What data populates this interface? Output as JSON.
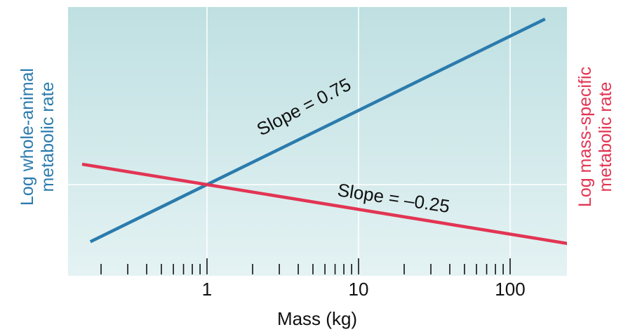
{
  "chart_data": {
    "type": "line",
    "x_scale": "log",
    "xlabel": "Mass (kg)",
    "ylabel_left": [
      "Log whole-animal",
      "metabolic rate"
    ],
    "ylabel_right": [
      "Log mass-specific",
      "metabolic rate"
    ],
    "x_ticks": [
      1,
      10,
      100
    ],
    "x_tick_labels": [
      "1",
      "10",
      "100"
    ],
    "xlim": [
      0.15,
      250
    ],
    "ylim": [
      -0.8,
      0.9
    ],
    "grid": true,
    "series": [
      {
        "slope": 0.75,
        "color": "#2b7bad",
        "x": [
          0.17,
          170
        ],
        "y": [
          -0.577,
          1.673
        ]
      },
      {
        "slope": -0.25,
        "color": "#e23553",
        "x": [
          0.15,
          250
        ],
        "y": [
          0.206,
          -0.6
        ]
      }
    ],
    "annotations": [
      {
        "text": "Slope = 0.75",
        "series": 0
      },
      {
        "text": "Slope = –0.25",
        "series": 1
      }
    ]
  },
  "colors": {
    "plot_bg_top": "#bfe0e2",
    "plot_bg_bottom": "#e4f2f3",
    "grid": "#ffffff",
    "left_label": "#2b7bad",
    "right_label": "#e23553"
  }
}
